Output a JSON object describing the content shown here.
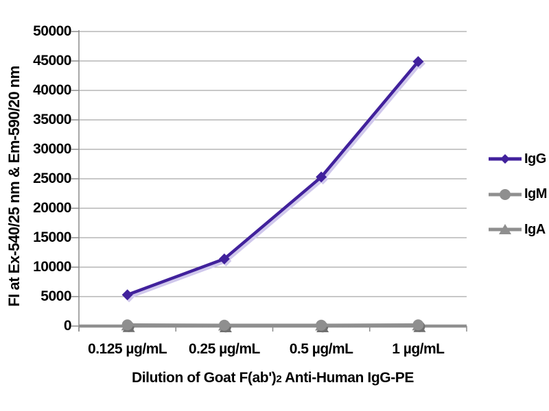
{
  "chart_data": {
    "type": "line",
    "categories": [
      "0.125 µg/mL",
      "0.25 µg/mL",
      "0.5 µg/mL",
      "1 µg/mL"
    ],
    "series": [
      {
        "name": "IgA",
        "marker": "triangle",
        "color": "#8f8f8f",
        "values": [
          80,
          60,
          60,
          80
        ]
      },
      {
        "name": "IgM",
        "marker": "circle",
        "color": "#8f8f8f",
        "values": [
          200,
          150,
          150,
          200
        ]
      },
      {
        "name": "IgG",
        "marker": "diamond",
        "color": "#41219c",
        "values": [
          5300,
          11400,
          25300,
          44900
        ]
      }
    ],
    "legend_order": [
      "IgG",
      "IgM",
      "IgA"
    ],
    "ylabel": "FI at Ex-540/25 nm & Em-590/20 nm",
    "xlabel_prefix": "Dilution of Goat F(ab')",
    "xlabel_sub": "2",
    "xlabel_suffix": " Anti-Human IgG-PE",
    "ylim": [
      0,
      50000
    ],
    "ytick_step": 5000,
    "ytick_labels": [
      "0",
      "5000",
      "10000",
      "15000",
      "20000",
      "25000",
      "30000",
      "35000",
      "40000",
      "45000",
      "50000"
    ],
    "grid": true,
    "legend_position": "right",
    "colors": {
      "gridline": "#a8a8a8",
      "axis": "#8a8a8a",
      "zero_line": "#8f8f8f",
      "igg_purple": "#41219c",
      "gray_series": "#8f8f8f",
      "marker_shadow": "#6f6f6f",
      "igg_line_shadow": "#d0c8ec",
      "text": "#000000",
      "background": "#ffffff"
    }
  }
}
